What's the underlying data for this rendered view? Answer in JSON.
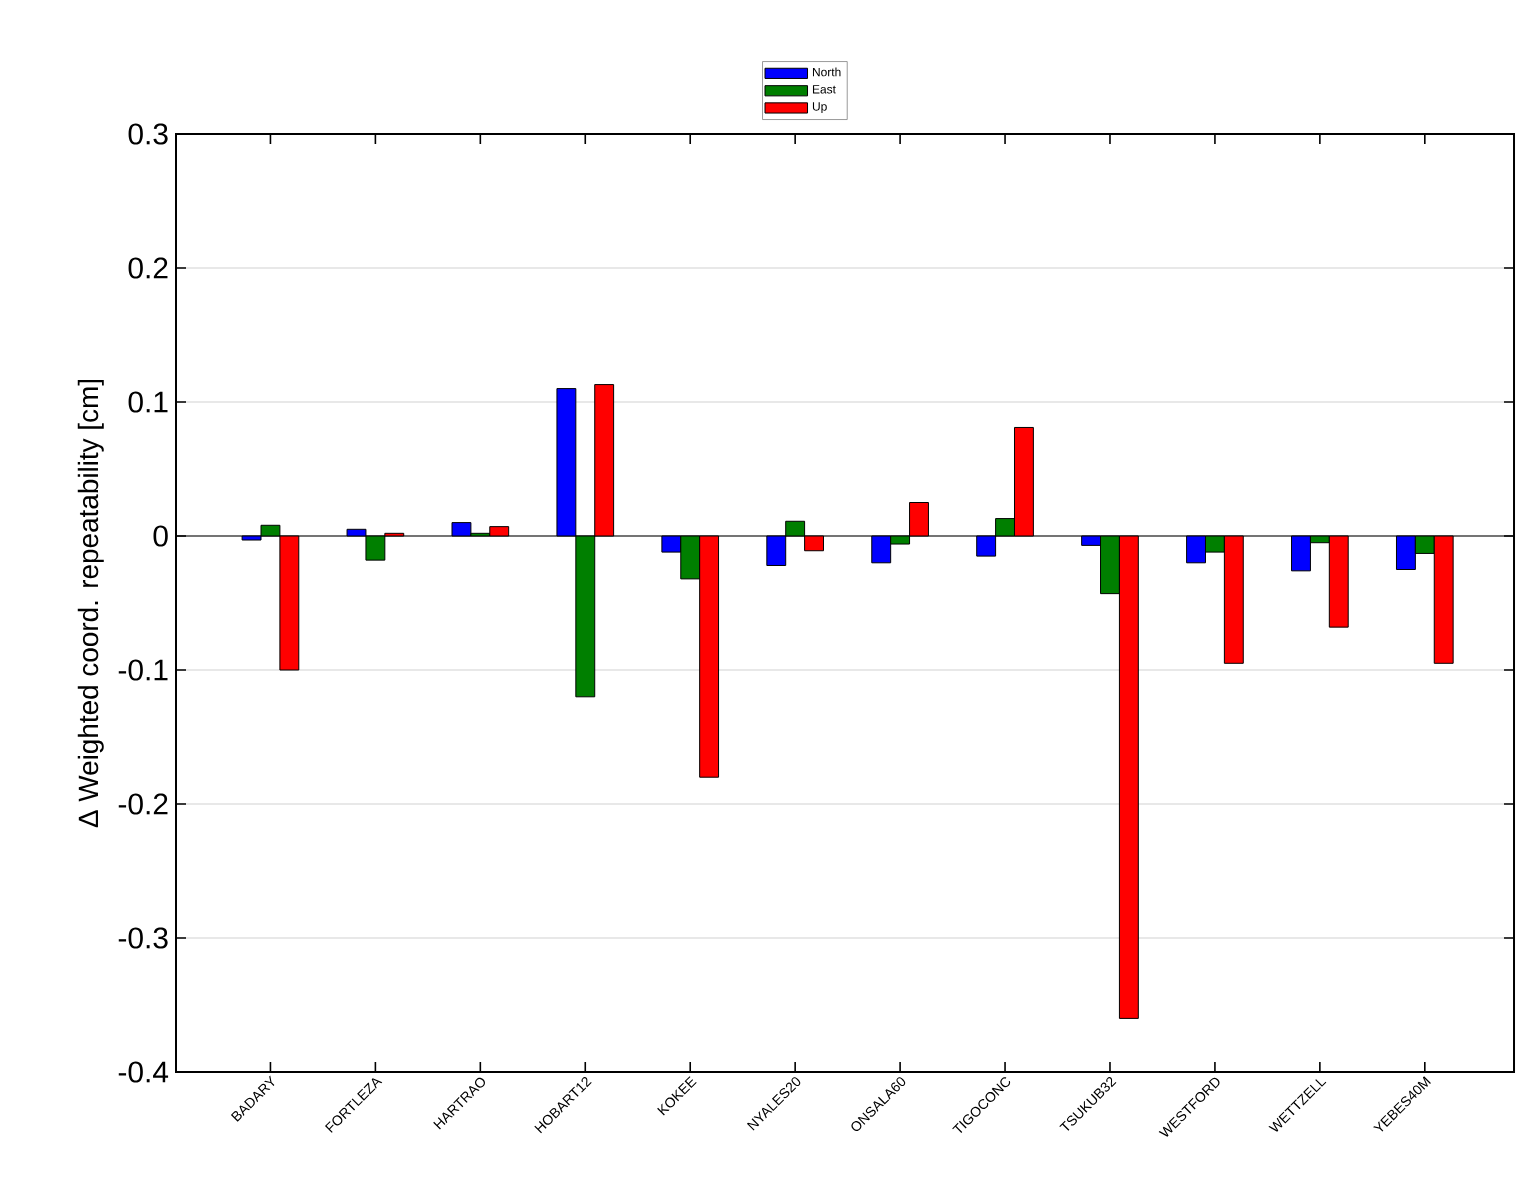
{
  "chart_data": {
    "type": "bar",
    "ylabel": "Δ Weighted coord. repeatability [cm]",
    "categories": [
      "BADARY",
      "FORTLEZA",
      "HARTRAO",
      "HOBART12",
      "KOKEE",
      "NYALES20",
      "ONSALA60",
      "TIGOCONC",
      "TSUKUB32",
      "WESTFORD",
      "WETTZELL",
      "YEBES40M"
    ],
    "series": [
      {
        "name": "North",
        "color": "#0000ff",
        "values": [
          -0.003,
          0.005,
          0.01,
          0.11,
          -0.012,
          -0.022,
          -0.02,
          -0.015,
          -0.007,
          -0.02,
          -0.026,
          -0.025
        ]
      },
      {
        "name": "East",
        "color": "#007f00",
        "values": [
          0.008,
          -0.018,
          0.002,
          -0.12,
          -0.032,
          0.011,
          -0.006,
          0.013,
          -0.043,
          -0.012,
          -0.005,
          -0.013
        ]
      },
      {
        "name": "Up",
        "color": "#ff0000",
        "values": [
          -0.1,
          0.002,
          0.007,
          0.113,
          -0.18,
          -0.011,
          0.025,
          0.081,
          -0.36,
          -0.095,
          -0.068,
          -0.095
        ]
      }
    ],
    "ylim": [
      -0.4,
      0.3
    ],
    "yticks": [
      -0.4,
      -0.3,
      -0.2,
      -0.1,
      0,
      0.1,
      0.2,
      0.3
    ],
    "grid": "y",
    "legend": "top"
  }
}
